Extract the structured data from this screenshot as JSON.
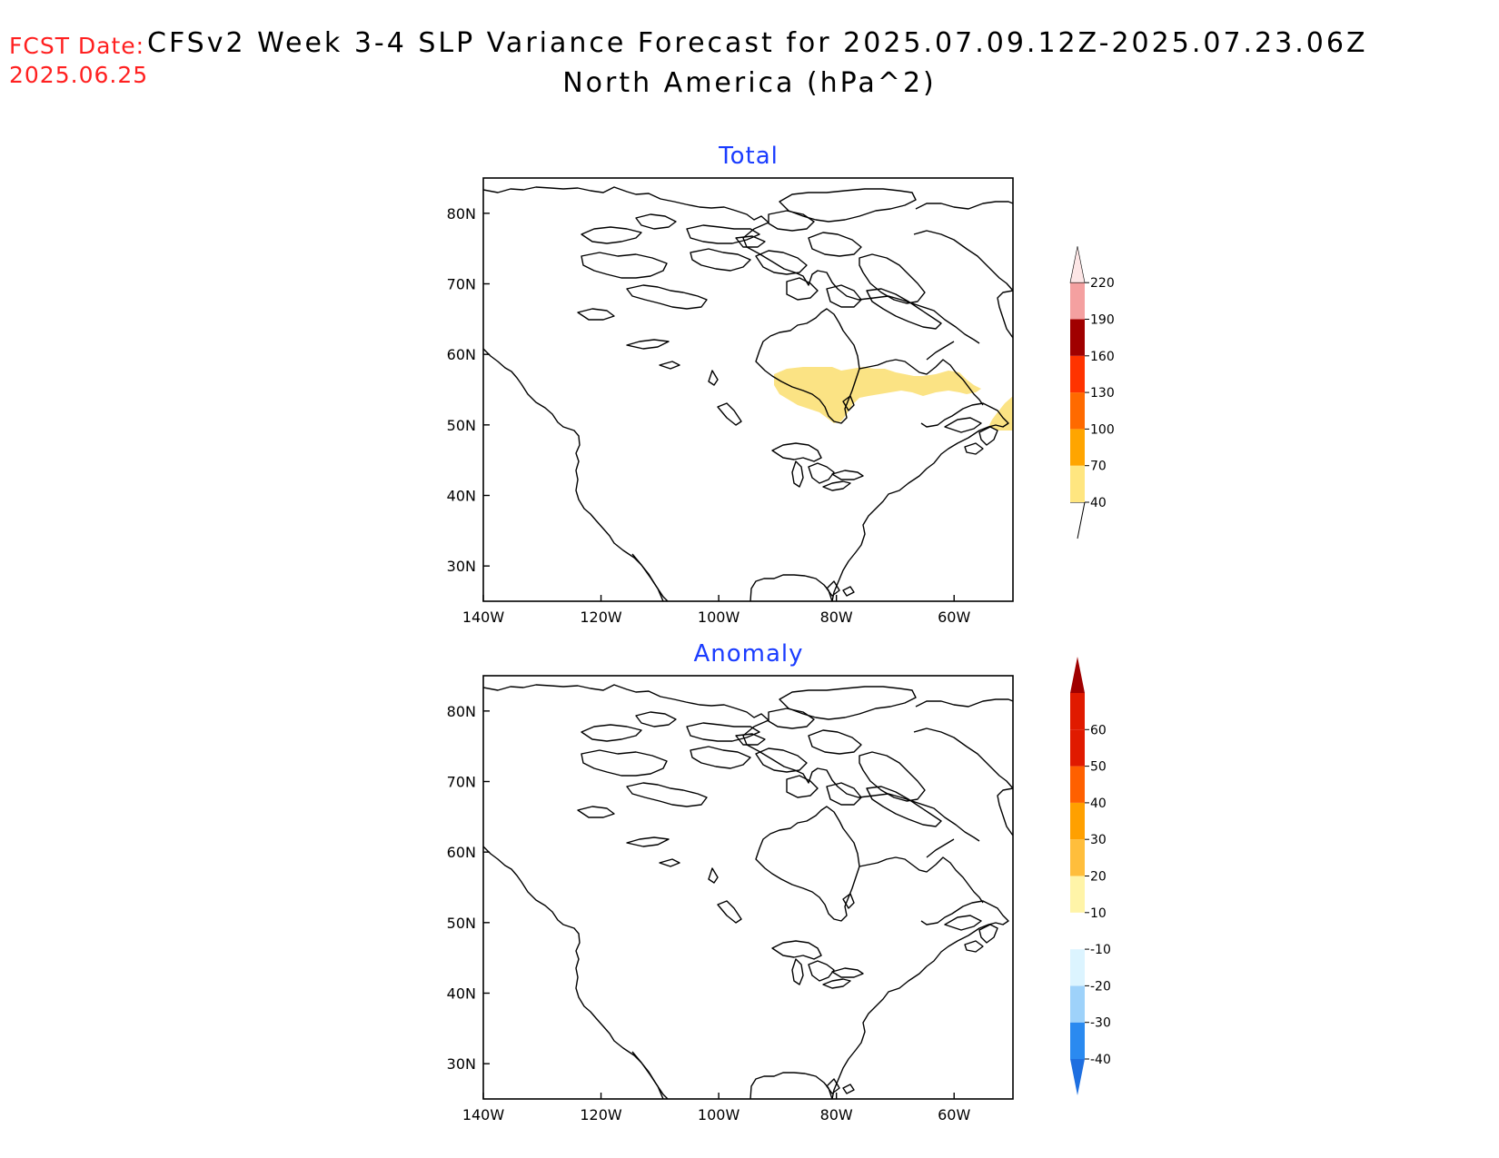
{
  "header": {
    "fcst_label": "FCST Date:",
    "fcst_date": "2025.06.25",
    "title": "CFSv2 Week 3-4 SLP Variance Forecast for 2025.07.09.12Z-2025.07.23.06Z",
    "subtitle": "North America (hPa^2)"
  },
  "axes": {
    "lat_labels": [
      "80N",
      "70N",
      "60N",
      "50N",
      "40N",
      "30N"
    ],
    "lon_labels": [
      "140W",
      "120W",
      "100W",
      "80W",
      "60W"
    ],
    "lat_values": [
      80,
      70,
      60,
      50,
      40,
      30
    ],
    "lon_values": [
      -140,
      -120,
      -100,
      -80,
      -60
    ],
    "lat_range": [
      25,
      85
    ],
    "lon_range": [
      -140,
      -50
    ]
  },
  "panels": [
    {
      "title": "Total",
      "colorbar": {
        "levels": [
          "40",
          "70",
          "100",
          "130",
          "160",
          "190",
          "220"
        ],
        "colors": [
          "#ffe680",
          "#ffa500",
          "#ff6a00",
          "#ff3300",
          "#e01000",
          "#a00000",
          "#f4a0a0",
          "#fde6e6"
        ],
        "lower_extend_color": "#ffffff"
      },
      "shaded_regions": [
        {
          "value_range": "40-70",
          "color": "#fbe384",
          "location": "Hudson Bay / James Bay to Labrador"
        },
        {
          "value_range": "40-70",
          "color": "#fbe384",
          "location": "off Newfoundland"
        }
      ]
    },
    {
      "title": "Anomaly",
      "colorbar": {
        "levels": [
          "-40",
          "-30",
          "-20",
          "-10",
          "10",
          "20",
          "30",
          "40",
          "50",
          "60"
        ],
        "colors": [
          "#1e6fe0",
          "#2a8af0",
          "#9ed2fa",
          "#dcf4ff",
          "#ffffff",
          "#fff4a8",
          "#ffbe3c",
          "#ffa000",
          "#ff6000",
          "#e01a00",
          "#a00000"
        ]
      },
      "shaded_regions": []
    }
  ]
}
